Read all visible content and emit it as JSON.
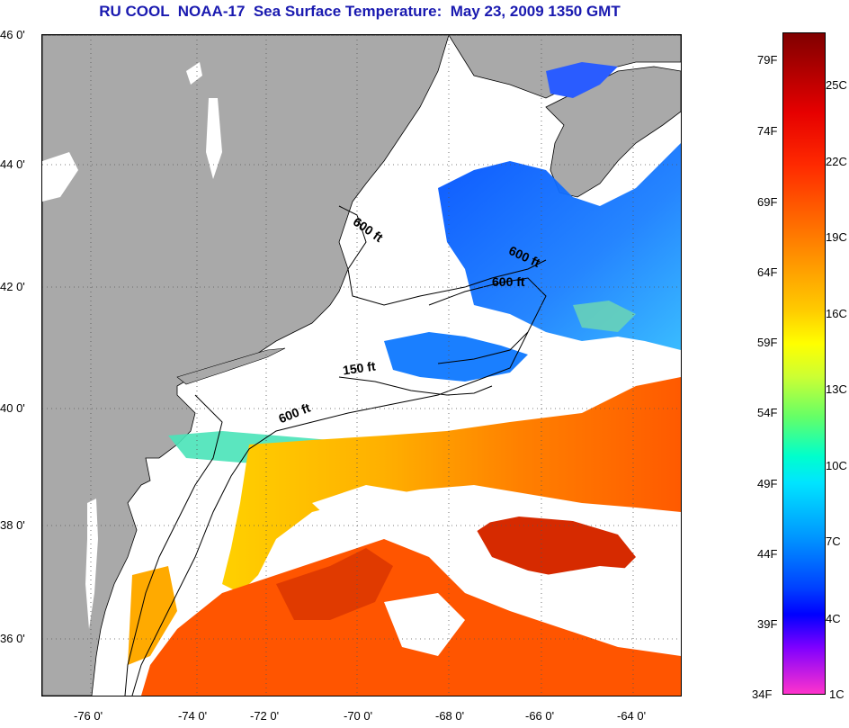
{
  "title": "RU COOL  NOAA-17  Sea Surface Temperature:  May 23, 2009 1350 GMT",
  "map": {
    "lat_ticks": [
      "46 0'",
      "44 0'",
      "42 0'",
      "40 0'",
      "38 0'",
      "36 0'"
    ],
    "lon_ticks": [
      "-76 0'",
      "-74 0'",
      "-72 0'",
      "-70 0'",
      "-68 0'",
      "-66 0'",
      "-64 0'"
    ],
    "lat_range": [
      35.0,
      46.0
    ],
    "lon_range": [
      -77.0,
      -63.0
    ],
    "grid": "dotted",
    "depth_contours": [
      {
        "label": "600 ft",
        "id": "gom-west"
      },
      {
        "label": "600 ft",
        "id": "gom-east"
      },
      {
        "label": "600 ft",
        "id": "georges"
      },
      {
        "label": "150 ft",
        "id": "nantucket"
      },
      {
        "label": "600 ft",
        "id": "shelf"
      }
    ],
    "colors": {
      "land": "#a9a9a9",
      "cloud": "#ffffff",
      "cold": "#1e6bff",
      "warm": "#ff6a00"
    }
  },
  "colorbar": {
    "fahrenheit": [
      "79F",
      "74F",
      "69F",
      "64F",
      "59F",
      "54F",
      "49F",
      "44F",
      "39F",
      "34F"
    ],
    "celsius": [
      "25C",
      "22C",
      "19C",
      "16C",
      "13C",
      "10C",
      "7C",
      "4C",
      "1C"
    ]
  }
}
